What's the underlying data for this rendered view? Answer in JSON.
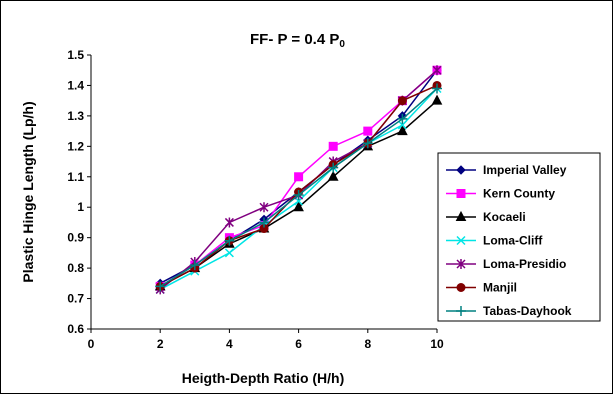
{
  "chart_data": {
    "type": "line",
    "title": "FF- P = 0.4 P",
    "title_subscript": "0",
    "xlabel": "Heigth-Depth Ratio (H/h)",
    "ylabel": "Plastic Hinge Length (Lp/h)",
    "xlim": [
      0,
      10
    ],
    "ylim": [
      0.6,
      1.5
    ],
    "x_ticks": [
      "0",
      "2",
      "4",
      "6",
      "8",
      "10"
    ],
    "y_ticks": [
      "0.6",
      "0.7",
      "0.8",
      "0.9",
      "1",
      "1.1",
      "1.2",
      "1.3",
      "1.4",
      "1.5"
    ],
    "grid": false,
    "legend_position": "right",
    "x": [
      2,
      3,
      4,
      5,
      6,
      7,
      8,
      9,
      10
    ],
    "series": [
      {
        "name": "Imperial Valley",
        "color": "#000080",
        "marker": "diamond",
        "values": [
          0.75,
          0.81,
          0.89,
          0.96,
          1.05,
          1.14,
          1.22,
          1.3,
          1.45
        ]
      },
      {
        "name": "Kern County",
        "color": "#FF00FF",
        "marker": "square",
        "values": [
          0.74,
          0.81,
          0.9,
          0.94,
          1.1,
          1.2,
          1.25,
          1.35,
          1.45
        ]
      },
      {
        "name": "Kocaeli",
        "color": "#000000",
        "marker": "triangle",
        "values": [
          0.74,
          0.8,
          0.88,
          0.93,
          1.0,
          1.1,
          1.2,
          1.25,
          1.35
        ]
      },
      {
        "name": "Loma-Cliff",
        "color": "#00E5E5",
        "marker": "x",
        "values": [
          0.73,
          0.79,
          0.85,
          0.94,
          1.02,
          1.13,
          1.21,
          1.27,
          1.39
        ]
      },
      {
        "name": "Loma-Presidio",
        "color": "#800080",
        "marker": "star",
        "values": [
          0.73,
          0.82,
          0.95,
          1.0,
          1.04,
          1.15,
          1.21,
          1.35,
          1.45
        ]
      },
      {
        "name": "Manjil",
        "color": "#800000",
        "marker": "circle",
        "values": [
          0.74,
          0.8,
          0.89,
          0.93,
          1.05,
          1.14,
          1.21,
          1.35,
          1.4
        ]
      },
      {
        "name": "Tabas-Dayhook",
        "color": "#008080",
        "marker": "plus",
        "values": [
          0.74,
          0.81,
          0.89,
          0.95,
          1.04,
          1.13,
          1.21,
          1.29,
          1.39
        ]
      }
    ]
  }
}
